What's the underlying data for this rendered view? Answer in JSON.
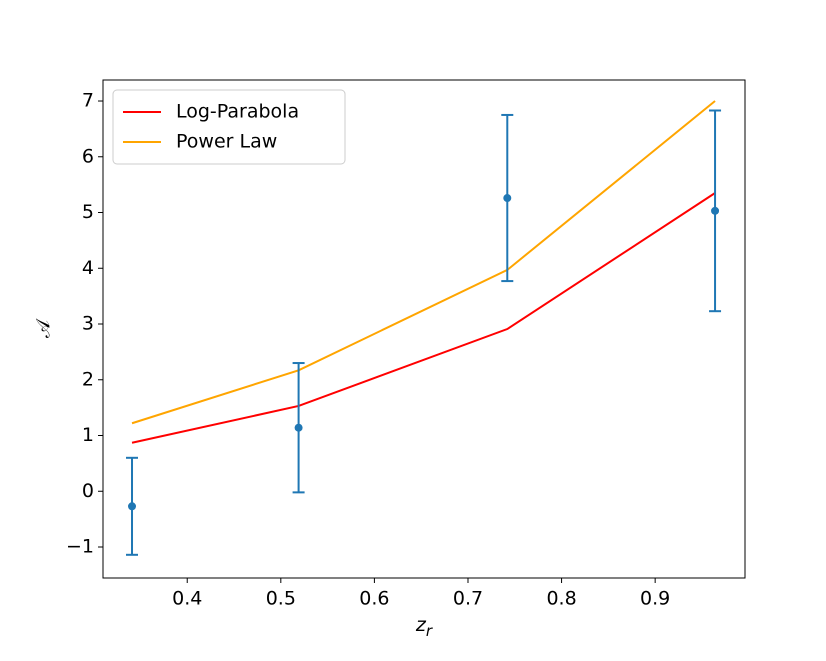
{
  "chart_data": {
    "type": "line",
    "xlabel": {
      "base": "z",
      "sub": "r"
    },
    "ylabel": "𝒜",
    "xlim": [
      0.31,
      0.996
    ],
    "ylim": [
      -1.556,
      7.377
    ],
    "xticks": [
      0.4,
      0.5,
      0.6,
      0.7,
      0.8,
      0.9
    ],
    "yticks": [
      {
        "value": -1,
        "label": "−1"
      },
      0,
      1,
      2,
      3,
      4,
      5,
      6,
      7
    ],
    "x": [
      0.341,
      0.519,
      0.742,
      0.964
    ],
    "legend": "upper left",
    "series": [
      {
        "name": "Log-Parabola",
        "color": "#ff0000",
        "values": [
          0.87,
          1.53,
          2.91,
          5.35
        ]
      },
      {
        "name": "Power Law",
        "color": "#ffa500",
        "values": [
          1.22,
          2.17,
          3.97,
          7.0
        ]
      },
      {
        "type": "errorbar",
        "color": "#1f77b4",
        "values": [
          -0.27,
          1.14,
          5.26,
          5.03
        ],
        "errors": [
          0.87,
          1.16,
          1.49,
          1.8
        ]
      }
    ]
  }
}
